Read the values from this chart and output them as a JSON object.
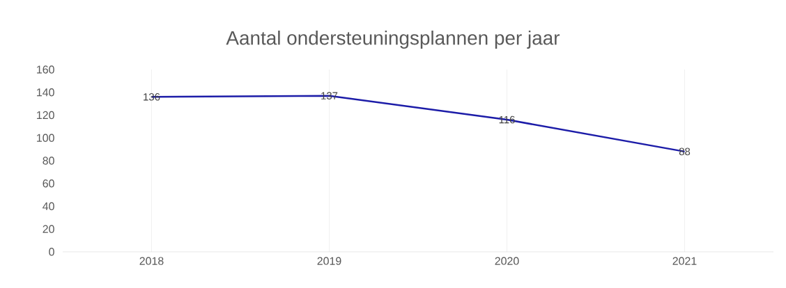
{
  "chart_data": {
    "type": "line",
    "title": "Aantal ondersteuningsplannen per jaar",
    "categories": [
      "2018",
      "2019",
      "2020",
      "2021"
    ],
    "values": [
      136,
      137,
      116,
      88
    ],
    "color": "#1c1ca8",
    "ylim": [
      0,
      160
    ],
    "yticks": [
      0,
      20,
      40,
      60,
      80,
      100,
      120,
      140,
      160
    ],
    "grid": "x",
    "data_labels": true
  }
}
